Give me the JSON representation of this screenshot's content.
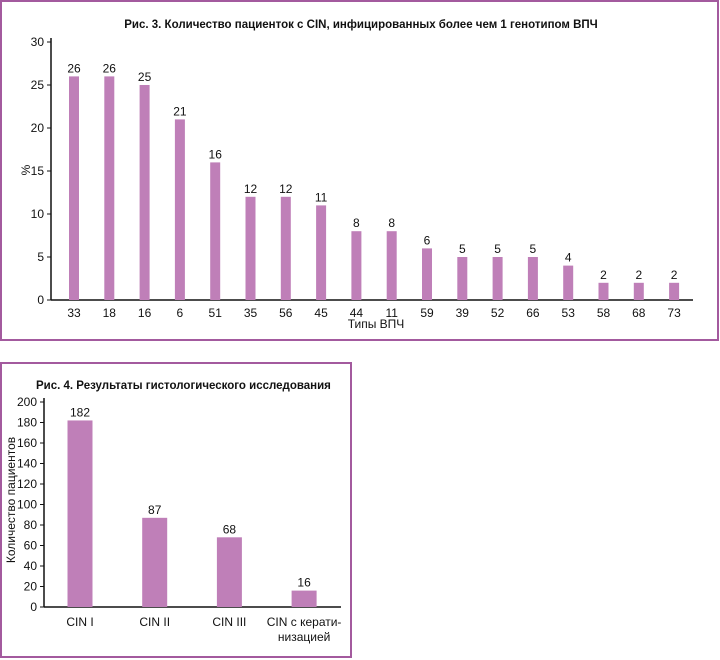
{
  "colors": {
    "bar": "#bf7fb8",
    "frame": "#a35a9e",
    "axis": "#111111"
  },
  "chart_data": [
    {
      "type": "bar",
      "title": "Рис. 3. Количество пациенток с CIN, инфицированных более чем 1 генотипом ВПЧ",
      "xlabel": "Типы ВПЧ",
      "ylabel": "%",
      "ylim": [
        0,
        30
      ],
      "yticks": [
        0,
        5,
        10,
        15,
        20,
        25,
        30
      ],
      "categories": [
        "33",
        "18",
        "16",
        "6",
        "51",
        "35",
        "56",
        "45",
        "44",
        "11",
        "59",
        "39",
        "52",
        "66",
        "53",
        "58",
        "68",
        "73"
      ],
      "values": [
        26,
        26,
        25,
        21,
        16,
        12,
        12,
        11,
        8,
        8,
        6,
        5,
        5,
        5,
        4,
        2,
        2,
        2
      ],
      "grid": false
    },
    {
      "type": "bar",
      "title": "Рис. 4. Результаты гистологического исследования",
      "xlabel": "",
      "ylabel": "Количество пациентов",
      "ylim": [
        0,
        200
      ],
      "yticks": [
        0,
        20,
        40,
        60,
        80,
        100,
        120,
        140,
        160,
        180,
        200
      ],
      "categories": [
        [
          "CIN I"
        ],
        [
          "CIN II"
        ],
        [
          "CIN III"
        ],
        [
          "CIN с керати-",
          "низацией"
        ]
      ],
      "values": [
        182,
        87,
        68,
        16
      ],
      "grid": false
    }
  ]
}
